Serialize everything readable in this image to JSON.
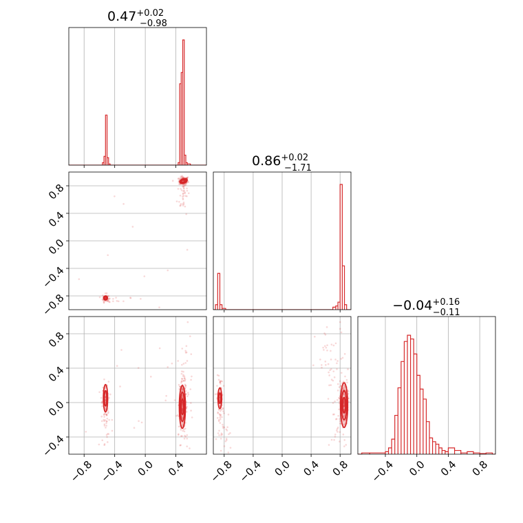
{
  "figure": {
    "type": "corner_plot"
  },
  "chart_data": [
    {
      "type": "histogram",
      "panel": "p0",
      "param_index": 0,
      "title": {
        "median": "0.47",
        "plus": "+0.02",
        "minus": "−0.98"
      },
      "xlim": [
        -1.0,
        0.8
      ],
      "xticks": [
        -0.8,
        -0.4,
        0.0,
        0.4
      ],
      "grid": true,
      "color": "#d62728",
      "bins": [
        {
          "x0": -0.56,
          "x1": -0.54,
          "h": 0.02
        },
        {
          "x0": -0.54,
          "x1": -0.52,
          "h": 0.07
        },
        {
          "x0": -0.52,
          "x1": -0.5,
          "h": 0.4
        },
        {
          "x0": -0.5,
          "x1": -0.48,
          "h": 0.06
        },
        {
          "x0": -0.48,
          "x1": -0.46,
          "h": 0.01
        },
        {
          "x0": 0.43,
          "x1": 0.45,
          "h": 0.02
        },
        {
          "x0": 0.45,
          "x1": 0.47,
          "h": 0.65
        },
        {
          "x0": 0.47,
          "x1": 0.49,
          "h": 0.74
        },
        {
          "x0": 0.49,
          "x1": 0.51,
          "h": 1.0
        },
        {
          "x0": 0.51,
          "x1": 0.53,
          "h": 0.08
        },
        {
          "x0": 0.53,
          "x1": 0.55,
          "h": 0.02
        },
        {
          "x0": 0.55,
          "x1": 0.59,
          "h": 0.01
        }
      ]
    },
    {
      "type": "histogram",
      "panel": "p1",
      "param_index": 1,
      "title": {
        "median": "0.86",
        "plus": "+0.02",
        "minus": "−1.71"
      },
      "xlim": [
        -0.95,
        0.95
      ],
      "grid": true,
      "color": "#d62728",
      "bins": [
        {
          "x0": -0.92,
          "x1": -0.89,
          "h": 0.04
        },
        {
          "x0": -0.89,
          "x1": -0.86,
          "h": 0.29
        },
        {
          "x0": -0.86,
          "x1": -0.83,
          "h": 0.04
        },
        {
          "x0": -0.83,
          "x1": -0.78,
          "h": 0.01
        },
        {
          "x0": 0.7,
          "x1": 0.74,
          "h": 0.02
        },
        {
          "x0": 0.74,
          "x1": 0.77,
          "h": 0.03
        },
        {
          "x0": 0.77,
          "x1": 0.8,
          "h": 0.06
        },
        {
          "x0": 0.8,
          "x1": 0.83,
          "h": 1.0
        },
        {
          "x0": 0.83,
          "x1": 0.86,
          "h": 0.35
        },
        {
          "x0": 0.86,
          "x1": 0.89,
          "h": 0.04
        }
      ]
    },
    {
      "type": "histogram",
      "panel": "p2",
      "param_index": 2,
      "title": {
        "median": "−0.04",
        "plus": "+0.16",
        "minus": "−0.11"
      },
      "xlim": [
        -0.75,
        1.0
      ],
      "xticks": [
        -0.4,
        0.0,
        0.4,
        0.8
      ],
      "grid": true,
      "color": "#d62728",
      "bins": [
        {
          "x0": -0.7,
          "x1": -0.6,
          "h": 0.01
        },
        {
          "x0": -0.6,
          "x1": -0.4,
          "h": 0.01
        },
        {
          "x0": -0.4,
          "x1": -0.36,
          "h": 0.02
        },
        {
          "x0": -0.36,
          "x1": -0.32,
          "h": 0.05
        },
        {
          "x0": -0.32,
          "x1": -0.28,
          "h": 0.12
        },
        {
          "x0": -0.28,
          "x1": -0.24,
          "h": 0.31
        },
        {
          "x0": -0.24,
          "x1": -0.2,
          "h": 0.53
        },
        {
          "x0": -0.2,
          "x1": -0.16,
          "h": 0.74
        },
        {
          "x0": -0.16,
          "x1": -0.12,
          "h": 0.9
        },
        {
          "x0": -0.12,
          "x1": -0.08,
          "h": 0.95
        },
        {
          "x0": -0.08,
          "x1": -0.04,
          "h": 0.92
        },
        {
          "x0": -0.04,
          "x1": 0.0,
          "h": 0.8
        },
        {
          "x0": 0.0,
          "x1": 0.04,
          "h": 0.63
        },
        {
          "x0": 0.04,
          "x1": 0.08,
          "h": 0.52
        },
        {
          "x0": 0.08,
          "x1": 0.12,
          "h": 0.44
        },
        {
          "x0": 0.12,
          "x1": 0.16,
          "h": 0.26
        },
        {
          "x0": 0.16,
          "x1": 0.2,
          "h": 0.13
        },
        {
          "x0": 0.2,
          "x1": 0.24,
          "h": 0.1
        },
        {
          "x0": 0.24,
          "x1": 0.28,
          "h": 0.08
        },
        {
          "x0": 0.28,
          "x1": 0.32,
          "h": 0.05
        },
        {
          "x0": 0.32,
          "x1": 0.36,
          "h": 0.03
        },
        {
          "x0": 0.36,
          "x1": 0.4,
          "h": 0.02
        },
        {
          "x0": 0.4,
          "x1": 0.48,
          "h": 0.05
        },
        {
          "x0": 0.48,
          "x1": 0.56,
          "h": 0.03
        },
        {
          "x0": 0.56,
          "x1": 0.64,
          "h": 0.01
        },
        {
          "x0": 0.64,
          "x1": 0.72,
          "h": 0.02
        },
        {
          "x0": 0.72,
          "x1": 0.8,
          "h": 0.01
        },
        {
          "x0": 0.8,
          "x1": 0.88,
          "h": 0.005
        },
        {
          "x0": 0.88,
          "x1": 0.96,
          "h": 0.01
        }
      ]
    },
    {
      "type": "scatter",
      "panel": "p10",
      "x_param": 0,
      "y_param": 1,
      "xlim": [
        -1.0,
        0.8
      ],
      "ylim": [
        -1.0,
        1.0
      ],
      "yticks": [
        -0.8,
        -0.4,
        0.0,
        0.4,
        0.8
      ],
      "grid": true,
      "color": "#d62728",
      "clusters": [
        {
          "cx": 0.5,
          "cy": 0.87,
          "sx": 0.03,
          "sy": 0.03,
          "n": 140
        },
        {
          "cx": 0.5,
          "cy": 0.7,
          "sx": 0.04,
          "sy": 0.15,
          "n": 40
        },
        {
          "cx": -0.52,
          "cy": -0.83,
          "sx": 0.02,
          "sy": 0.03,
          "n": 50
        },
        {
          "cx": -0.4,
          "cy": -0.86,
          "sx": 0.1,
          "sy": 0.02,
          "n": 12
        },
        {
          "cx": -0.2,
          "cy": -0.3,
          "sx": 0.45,
          "sy": 0.55,
          "n": 16
        }
      ],
      "contours": [
        {
          "cx": 0.5,
          "cy": 0.87,
          "rx": 0.05,
          "ry": 0.03,
          "rot": -20
        },
        {
          "cx": 0.5,
          "cy": 0.87,
          "rx": 0.032,
          "ry": 0.018,
          "rot": -20
        },
        {
          "cx": -0.52,
          "cy": -0.83,
          "rx": 0.026,
          "ry": 0.03,
          "rot": 0
        },
        {
          "cx": -0.52,
          "cy": -0.83,
          "rx": 0.016,
          "ry": 0.018,
          "rot": 0
        }
      ]
    },
    {
      "type": "scatter",
      "panel": "p20",
      "x_param": 0,
      "y_param": 2,
      "xlim": [
        -1.0,
        0.8
      ],
      "ylim": [
        -0.6,
        1.0
      ],
      "xticks": [
        -0.8,
        -0.4,
        0.0,
        0.4
      ],
      "yticks": [
        -0.4,
        0.0,
        0.4,
        0.8
      ],
      "grid": true,
      "color": "#d62728",
      "clusters": [
        {
          "cx": 0.49,
          "cy": -0.02,
          "sx": 0.025,
          "sy": 0.14,
          "n": 200
        },
        {
          "cx": 0.52,
          "cy": 0.1,
          "sx": 0.06,
          "sy": 0.35,
          "n": 60
        },
        {
          "cx": -0.52,
          "cy": 0.0,
          "sx": 0.02,
          "sy": 0.12,
          "n": 90
        },
        {
          "cx": -0.52,
          "cy": -0.2,
          "sx": 0.05,
          "sy": 0.3,
          "n": 30
        },
        {
          "cx": 0.0,
          "cy": 0.3,
          "sx": 0.55,
          "sy": 0.4,
          "n": 15
        }
      ],
      "contours": [
        {
          "cx": 0.485,
          "cy": -0.05,
          "rx": 0.04,
          "ry": 0.25,
          "rot": 0
        },
        {
          "cx": 0.485,
          "cy": -0.05,
          "rx": 0.028,
          "ry": 0.17,
          "rot": 0
        },
        {
          "cx": 0.485,
          "cy": -0.05,
          "rx": 0.016,
          "ry": 0.09,
          "rot": 0
        },
        {
          "cx": -0.52,
          "cy": 0.05,
          "rx": 0.028,
          "ry": 0.16,
          "rot": 0
        },
        {
          "cx": -0.52,
          "cy": 0.05,
          "rx": 0.016,
          "ry": 0.09,
          "rot": 0
        }
      ]
    },
    {
      "type": "scatter",
      "panel": "p21",
      "x_param": 1,
      "y_param": 2,
      "xlim": [
        -0.95,
        0.95
      ],
      "ylim": [
        -0.6,
        1.0
      ],
      "xticks": [
        -0.8,
        -0.4,
        0.0,
        0.4,
        0.8
      ],
      "grid": true,
      "color": "#d62728",
      "clusters": [
        {
          "cx": 0.85,
          "cy": 0.0,
          "sx": 0.03,
          "sy": 0.13,
          "n": 200
        },
        {
          "cx": 0.7,
          "cy": 0.4,
          "sx": 0.12,
          "sy": 0.25,
          "n": 50
        },
        {
          "cx": 0.78,
          "cy": -0.3,
          "sx": 0.06,
          "sy": 0.15,
          "n": 25
        },
        {
          "cx": -0.86,
          "cy": 0.05,
          "sx": 0.02,
          "sy": 0.12,
          "n": 90
        },
        {
          "cx": -0.8,
          "cy": -0.35,
          "sx": 0.05,
          "sy": 0.15,
          "n": 30
        }
      ],
      "contours": [
        {
          "cx": 0.855,
          "cy": -0.03,
          "rx": 0.05,
          "ry": 0.26,
          "rot": 0
        },
        {
          "cx": 0.855,
          "cy": -0.03,
          "rx": 0.035,
          "ry": 0.17,
          "rot": 0
        },
        {
          "cx": 0.855,
          "cy": -0.03,
          "rx": 0.02,
          "ry": 0.09,
          "rot": 0
        },
        {
          "cx": -0.86,
          "cy": 0.05,
          "rx": 0.026,
          "ry": 0.12,
          "rot": 0
        },
        {
          "cx": -0.86,
          "cy": 0.05,
          "rx": 0.014,
          "ry": 0.06,
          "rot": 0
        }
      ]
    }
  ]
}
